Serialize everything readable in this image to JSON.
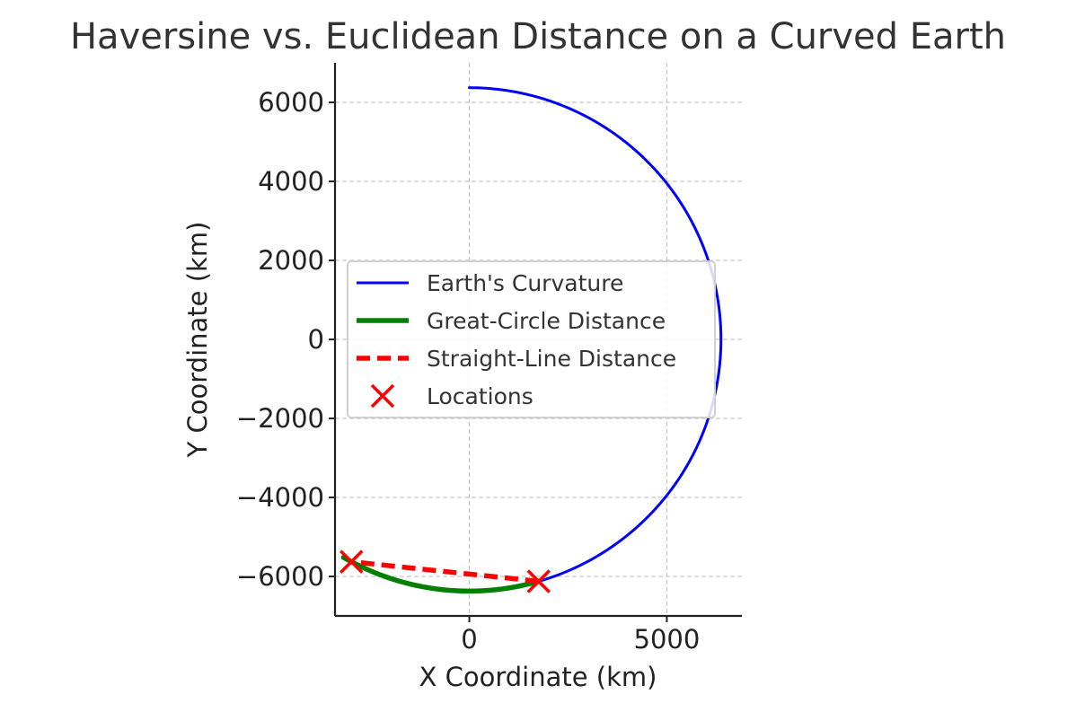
{
  "chart_data": {
    "type": "line",
    "title": "Haversine vs. Euclidean Distance on a Curved Earth",
    "xlabel": "X Coordinate (km)",
    "ylabel": "Y Coordinate (km)",
    "xlim": [
      -3400,
      6900
    ],
    "ylim": [
      -7000,
      7000
    ],
    "xticks": [
      0,
      5000
    ],
    "xtick_labels": [
      "0",
      "5000"
    ],
    "yticks": [
      6000,
      4000,
      2000,
      0,
      -2000,
      -4000,
      -6000
    ],
    "ytick_labels": [
      "6000",
      "4000",
      "2000",
      "0",
      "−2000",
      "−4000",
      "−6000"
    ],
    "grid": true,
    "legend_position": "center-left",
    "series": [
      {
        "name": "Earth's Curvature",
        "kind": "arc",
        "color": "#0000ff",
        "radius": 6371,
        "start_deg": 90,
        "end_deg": -74
      },
      {
        "name": "Great-Circle Distance",
        "kind": "arc",
        "color": "#008000",
        "radius": 6371,
        "start_deg": -74,
        "end_deg": -120
      },
      {
        "name": "Straight-Line Distance",
        "kind": "line",
        "color": "#ff0000",
        "x": [
          1756,
          -2985
        ],
        "y": [
          -6124,
          -5628
        ]
      },
      {
        "name": "Locations",
        "kind": "scatter",
        "color": "#ff0000",
        "x": [
          1756,
          -2985
        ],
        "y": [
          -6124,
          -5628
        ]
      }
    ]
  }
}
